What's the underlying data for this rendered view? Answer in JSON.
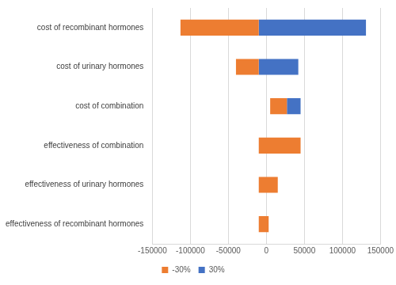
{
  "chart_data": {
    "type": "bar",
    "orientation": "horizontal",
    "categories": [
      "cost of recombinant hormones",
      "cost of urinary hormones",
      "cost of combination",
      "effectiveness of combination",
      "effectiveness of urinary hormones",
      "effectiveness of recombinant hormones"
    ],
    "series": [
      {
        "name": "-30%",
        "color": "#ed7d31",
        "values": [
          [
            -113000,
            -10000
          ],
          [
            -40000,
            -10000
          ],
          [
            5000,
            27000
          ],
          [
            -10000,
            45000
          ],
          [
            -10000,
            15000
          ],
          [
            -10000,
            3000
          ]
        ]
      },
      {
        "name": "30%",
        "color": "#4472c4",
        "values": [
          [
            -10000,
            131000
          ],
          [
            -10000,
            42000
          ],
          [
            27000,
            45000
          ],
          null,
          null,
          null
        ]
      }
    ],
    "xlim": [
      -150000,
      150000
    ],
    "xticks": [
      -150000,
      -100000,
      -50000,
      0,
      50000,
      100000,
      150000
    ],
    "grid": true,
    "legend": "bottom"
  }
}
